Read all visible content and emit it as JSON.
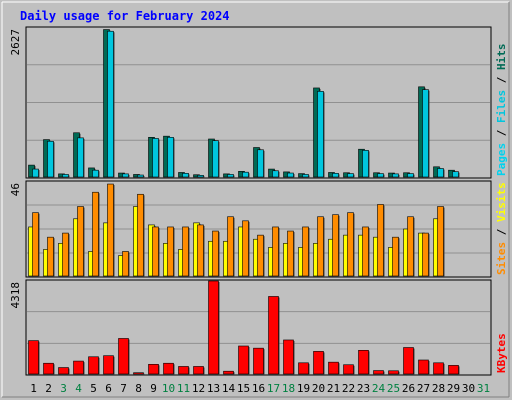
{
  "title": "Daily usage for February 2024",
  "colors": {
    "background": "#c0c0c0",
    "plot_bg": "#c0c0c0",
    "title": "#0000ff",
    "hits": "#006a55",
    "files": "#00c6de",
    "pages": "#00d2ee",
    "sites": "#ffff00",
    "visits": "#ff8c00",
    "kbytes": "#ff0000",
    "weekend": "#008040",
    "text": "#000000"
  },
  "chart_data": [
    {
      "type": "bar",
      "panel": "top",
      "scale_label": "2627",
      "ylim": [
        0,
        2627
      ],
      "right_label": {
        "parts": [
          {
            "text": "Pages",
            "color_key": "pages"
          },
          {
            "text": " / ",
            "color_key": "text"
          },
          {
            "text": "Files",
            "color_key": "files"
          },
          {
            "text": " / ",
            "color_key": "text"
          },
          {
            "text": "Hits",
            "color_key": "hits"
          }
        ]
      },
      "categories": [
        "1",
        "2",
        "3",
        "4",
        "5",
        "6",
        "7",
        "8",
        "9",
        "10",
        "11",
        "12",
        "13",
        "14",
        "15",
        "16",
        "17",
        "18",
        "19",
        "20",
        "21",
        "22",
        "23",
        "24",
        "25",
        "26",
        "27",
        "28",
        "29",
        "30",
        "31"
      ],
      "series": [
        {
          "name": "Hits",
          "color_key": "hits",
          "values": [
            210,
            660,
            55,
            780,
            160,
            2600,
            70,
            45,
            700,
            720,
            80,
            40,
            670,
            55,
            100,
            520,
            140,
            90,
            60,
            1570,
            80,
            75,
            490,
            75,
            70,
            75,
            1590,
            180,
            120,
            null,
            null
          ]
        },
        {
          "name": "Files",
          "color_key": "files",
          "values": [
            140,
            630,
            45,
            690,
            120,
            2570,
            55,
            35,
            680,
            700,
            65,
            30,
            640,
            45,
            85,
            480,
            110,
            70,
            45,
            1510,
            65,
            60,
            470,
            60,
            55,
            60,
            1540,
            150,
            95,
            null,
            null
          ]
        }
      ]
    },
    {
      "type": "bar",
      "panel": "middle",
      "scale_label": "46",
      "ylim": [
        0,
        46
      ],
      "right_label": {
        "parts": [
          {
            "text": "Sites",
            "color_key": "visits"
          },
          {
            "text": " / ",
            "color_key": "text"
          },
          {
            "text": "Visits",
            "color_key": "sites"
          }
        ]
      },
      "categories": [
        "1",
        "2",
        "3",
        "4",
        "5",
        "6",
        "7",
        "8",
        "9",
        "10",
        "11",
        "12",
        "13",
        "14",
        "15",
        "16",
        "17",
        "18",
        "19",
        "20",
        "21",
        "22",
        "23",
        "24",
        "25",
        "26",
        "27",
        "28",
        "29",
        "30",
        "31"
      ],
      "series": [
        {
          "name": "Sites",
          "color_key": "sites",
          "values": [
            24,
            13,
            16,
            28,
            12,
            26,
            10,
            34,
            25,
            16,
            13,
            26,
            17,
            17,
            24,
            18,
            14,
            16,
            14,
            16,
            18,
            20,
            20,
            19,
            14,
            23,
            21,
            28,
            null,
            null,
            null
          ]
        },
        {
          "name": "Visits",
          "color_key": "visits",
          "values": [
            31,
            19,
            21,
            34,
            41,
            45,
            12,
            40,
            24,
            24,
            24,
            25,
            22,
            29,
            27,
            20,
            24,
            22,
            24,
            29,
            30,
            31,
            24,
            35,
            19,
            29,
            21,
            34,
            null,
            null,
            null
          ]
        }
      ]
    },
    {
      "type": "bar",
      "panel": "bottom",
      "scale_label": "4318",
      "ylim": [
        0,
        4318
      ],
      "right_label": {
        "parts": [
          {
            "text": "KBytes",
            "color_key": "kbytes"
          }
        ]
      },
      "categories": [
        "1",
        "2",
        "3",
        "4",
        "5",
        "6",
        "7",
        "8",
        "9",
        "10",
        "11",
        "12",
        "13",
        "14",
        "15",
        "16",
        "17",
        "18",
        "19",
        "20",
        "21",
        "22",
        "23",
        "24",
        "25",
        "26",
        "27",
        "28",
        "29",
        "30",
        "31"
      ],
      "series": [
        {
          "name": "KBytes",
          "color_key": "kbytes",
          "values": [
            1550,
            500,
            300,
            600,
            800,
            850,
            1650,
            60,
            450,
            500,
            350,
            350,
            4318,
            130,
            1300,
            1200,
            3600,
            1580,
            520,
            1050,
            550,
            430,
            1100,
            160,
            150,
            1230,
            650,
            520,
            400,
            null,
            null
          ]
        }
      ]
    }
  ],
  "x_axis": {
    "labels": [
      "1",
      "2",
      "3",
      "4",
      "5",
      "6",
      "7",
      "8",
      "9",
      "10",
      "11",
      "12",
      "13",
      "14",
      "15",
      "16",
      "17",
      "18",
      "19",
      "20",
      "21",
      "22",
      "23",
      "24",
      "25",
      "26",
      "27",
      "28",
      "29",
      "30",
      "31"
    ],
    "weekend_days": [
      "3",
      "4",
      "10",
      "11",
      "17",
      "18",
      "24",
      "25",
      "31"
    ]
  }
}
